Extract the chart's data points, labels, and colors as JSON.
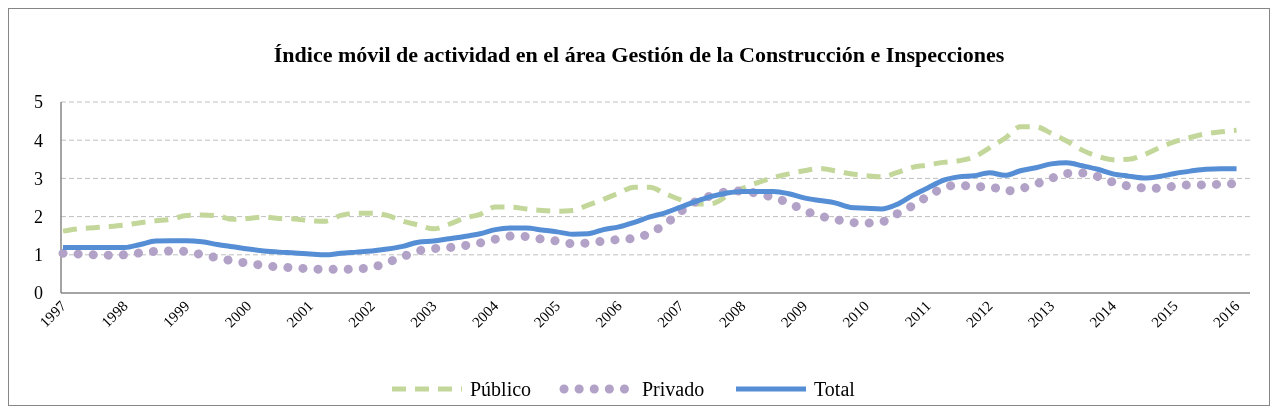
{
  "chart_data": {
    "type": "line",
    "title": "Índice móvil de actividad en el área Gestión de la Construcción e Inspecciones",
    "categories": [
      "1997",
      null,
      null,
      null,
      "1998",
      null,
      null,
      null,
      "1999",
      null,
      null,
      null,
      "2000",
      null,
      null,
      null,
      "2001",
      null,
      null,
      null,
      "2002",
      null,
      null,
      null,
      "2003",
      null,
      null,
      null,
      "2004",
      null,
      null,
      null,
      "2005",
      null,
      null,
      null,
      "2006",
      null,
      null,
      null,
      "2007",
      null,
      null,
      null,
      "2008",
      null,
      null,
      null,
      "2009",
      null,
      null,
      null,
      "2010",
      null,
      null,
      null,
      "2011",
      null,
      null,
      null,
      "2012",
      null,
      null,
      null,
      "2013",
      null,
      null,
      null,
      "2014",
      null,
      null,
      null,
      "2015",
      null,
      null,
      null,
      "2016"
    ],
    "series": [
      {
        "name": "Público",
        "color": "#c4d79b",
        "line_style": "dashed",
        "values": [
          1.62,
          1.68,
          1.71,
          1.74,
          1.78,
          1.84,
          1.89,
          1.93,
          2.03,
          2.04,
          2.02,
          1.93,
          1.95,
          1.99,
          1.95,
          1.94,
          1.89,
          1.88,
          2.03,
          2.09,
          2.09,
          2.03,
          1.88,
          1.78,
          1.68,
          1.8,
          1.96,
          2.06,
          2.25,
          2.25,
          2.2,
          2.16,
          2.14,
          2.16,
          2.3,
          2.45,
          2.62,
          2.77,
          2.77,
          2.6,
          2.44,
          2.33,
          2.34,
          2.54,
          2.74,
          2.89,
          3.02,
          3.12,
          3.2,
          3.26,
          3.2,
          3.12,
          3.07,
          3.04,
          3.15,
          3.29,
          3.35,
          3.42,
          3.46,
          3.56,
          3.8,
          4.05,
          4.35,
          4.35,
          4.18,
          3.98,
          3.74,
          3.58,
          3.49,
          3.5,
          3.62,
          3.8,
          3.96,
          4.07,
          4.17,
          4.22,
          4.26
        ]
      },
      {
        "name": "Privado",
        "color": "#b3a2c7",
        "line_style": "dotted",
        "values": [
          1.04,
          1.02,
          1.0,
          0.99,
          1.0,
          1.05,
          1.09,
          1.1,
          1.09,
          1.0,
          0.92,
          0.84,
          0.78,
          0.72,
          0.68,
          0.66,
          0.63,
          0.62,
          0.62,
          0.63,
          0.67,
          0.8,
          0.95,
          1.1,
          1.16,
          1.19,
          1.24,
          1.31,
          1.41,
          1.49,
          1.48,
          1.41,
          1.36,
          1.29,
          1.31,
          1.36,
          1.4,
          1.43,
          1.57,
          1.8,
          2.13,
          2.4,
          2.55,
          2.65,
          2.67,
          2.6,
          2.5,
          2.36,
          2.16,
          2.02,
          1.93,
          1.85,
          1.83,
          1.86,
          2.07,
          2.28,
          2.53,
          2.75,
          2.83,
          2.78,
          2.79,
          2.67,
          2.73,
          2.85,
          3.0,
          3.13,
          3.14,
          3.05,
          2.9,
          2.8,
          2.75,
          2.74,
          2.8,
          2.83,
          2.83,
          2.85,
          2.86
        ]
      },
      {
        "name": "Total",
        "color": "#558ed5",
        "line_style": "solid",
        "values": [
          1.19,
          1.19,
          1.19,
          1.19,
          1.19,
          1.27,
          1.36,
          1.37,
          1.37,
          1.34,
          1.27,
          1.21,
          1.15,
          1.1,
          1.07,
          1.05,
          1.02,
          1.0,
          1.04,
          1.07,
          1.1,
          1.15,
          1.22,
          1.33,
          1.36,
          1.42,
          1.48,
          1.55,
          1.66,
          1.7,
          1.7,
          1.65,
          1.6,
          1.54,
          1.55,
          1.66,
          1.73,
          1.85,
          1.99,
          2.1,
          2.25,
          2.4,
          2.53,
          2.62,
          2.66,
          2.66,
          2.66,
          2.6,
          2.49,
          2.42,
          2.36,
          2.24,
          2.22,
          2.2,
          2.32,
          2.55,
          2.75,
          2.95,
          3.04,
          3.07,
          3.15,
          3.08,
          3.2,
          3.28,
          3.38,
          3.41,
          3.33,
          3.24,
          3.12,
          3.06,
          3.01,
          3.05,
          3.13,
          3.19,
          3.24,
          3.25,
          3.25
        ]
      }
    ],
    "ylim": [
      0,
      5
    ],
    "yticks": [
      0,
      1,
      2,
      3,
      4,
      5
    ],
    "grid": "y",
    "legend": "bottom",
    "marker": "none"
  }
}
